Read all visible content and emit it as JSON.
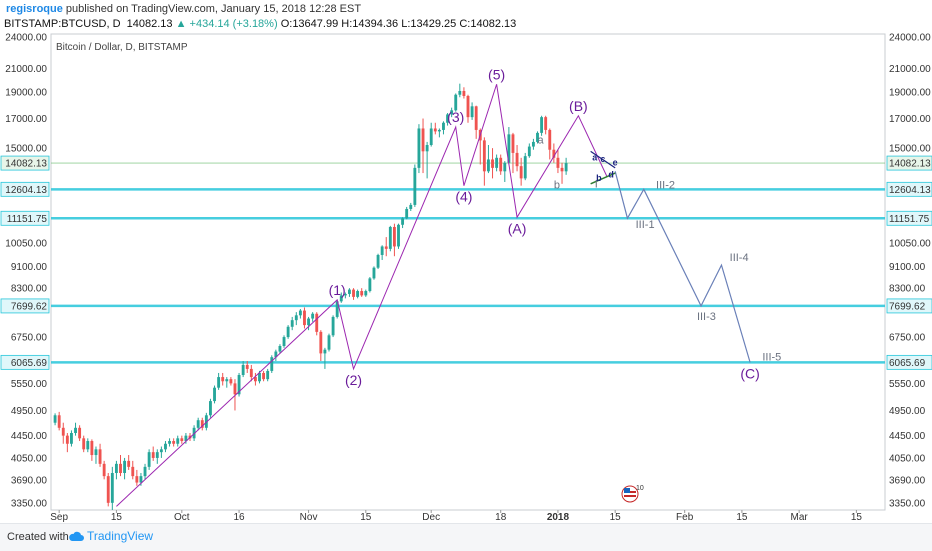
{
  "header": {
    "author": "regisroque",
    "published": "published on TradingView.com, January 15, 2018 12:28 EST",
    "symbol": "BITSTAMP:BTCUSD, D",
    "last": "14082.13",
    "change": "▲ +434.14 (+3.18%)",
    "o_label": "O:",
    "o": "13647.99",
    "h_label": "H:",
    "h": "14394.36",
    "l_label": "L:",
    "l": "13429.25",
    "c_label": "C:",
    "c": "14082.13"
  },
  "footer": {
    "created_with": "Created with",
    "brand": "TradingView"
  },
  "colors": {
    "up": "#26a69a",
    "down": "#ef5350",
    "wave": "#9c27b0",
    "projection": "#6a80b8",
    "hline": "#26c6da",
    "accent": "#1e88e5"
  },
  "chart_data": {
    "type": "candlestick",
    "title": "Bitcoin / Dollar, D, BITSTAMP",
    "ylim": [
      3250,
      24300
    ],
    "log_scale": true,
    "y_ticks": [
      3350,
      3690,
      4050,
      4450,
      4950,
      5550,
      6065.69,
      6750,
      7699.62,
      8300,
      9100,
      10050,
      11151.75,
      12604.13,
      14082.13,
      15000,
      17000,
      19000,
      21000,
      24000
    ],
    "y_tick_labels": [
      "3350.00",
      "3690.00",
      "4050.00",
      "4450.00",
      "4950.00",
      "5550.00",
      "6065.69",
      "6750.00",
      "7699.62",
      "8300.00",
      "9100.00",
      "10050.00",
      "11151.75",
      "12604.13",
      "14082.13",
      "15000.00",
      "17000.00",
      "19000.00",
      "21000.00",
      "24000.00"
    ],
    "x_range": [
      "2017-08-30",
      "2018-03-22"
    ],
    "x_ticks": [
      {
        "date": "2017-09-01",
        "label": "Sep"
      },
      {
        "date": "2017-09-15",
        "label": "15"
      },
      {
        "date": "2017-10-01",
        "label": "Oct"
      },
      {
        "date": "2017-10-15",
        "label": "16"
      },
      {
        "date": "2017-11-01",
        "label": "Nov"
      },
      {
        "date": "2017-11-15",
        "label": "15"
      },
      {
        "date": "2017-12-01",
        "label": "Dec"
      },
      {
        "date": "2017-12-18",
        "label": "18"
      },
      {
        "date": "2018-01-01",
        "label": "2018"
      },
      {
        "date": "2018-01-15",
        "label": "15"
      },
      {
        "date": "2018-02-01",
        "label": "Feb"
      },
      {
        "date": "2018-02-15",
        "label": "15"
      },
      {
        "date": "2018-03-01",
        "label": "Mar"
      },
      {
        "date": "2018-03-15",
        "label": "15"
      }
    ],
    "horizontal_lines": [
      6065.69,
      7699.62,
      11151.75,
      12604.13
    ],
    "current_price": 14082.13,
    "candles": {
      "start_date": "2017-08-31",
      "ohlc": [
        [
          4700,
          4890,
          4650,
          4850
        ],
        [
          4850,
          4920,
          4550,
          4600
        ],
        [
          4600,
          4700,
          4300,
          4450
        ],
        [
          4450,
          4500,
          4150,
          4300
        ],
        [
          4300,
          4550,
          4250,
          4500
        ],
        [
          4500,
          4700,
          4450,
          4600
        ],
        [
          4600,
          4650,
          4350,
          4400
        ],
        [
          4400,
          4450,
          4150,
          4200
        ],
        [
          4200,
          4400,
          4150,
          4350
        ],
        [
          4350,
          4380,
          4000,
          4100
        ],
        [
          4100,
          4250,
          3950,
          4200
        ],
        [
          4200,
          4300,
          3900,
          3950
        ],
        [
          3950,
          4000,
          3700,
          3750
        ],
        [
          3750,
          3800,
          3300,
          3350
        ],
        [
          3350,
          3900,
          3250,
          3800
        ],
        [
          3800,
          4000,
          3700,
          3950
        ],
        [
          3950,
          4100,
          3750,
          3800
        ],
        [
          3800,
          4050,
          3700,
          4000
        ],
        [
          4000,
          4100,
          3850,
          3900
        ],
        [
          3900,
          4000,
          3700,
          3750
        ],
        [
          3750,
          3850,
          3600,
          3650
        ],
        [
          3650,
          3800,
          3600,
          3750
        ],
        [
          3750,
          3950,
          3700,
          3900
        ],
        [
          3900,
          4200,
          3850,
          4150
        ],
        [
          4150,
          4250,
          4000,
          4050
        ],
        [
          4050,
          4200,
          3950,
          4150
        ],
        [
          4150,
          4250,
          4050,
          4200
        ],
        [
          4200,
          4350,
          4150,
          4300
        ],
        [
          4300,
          4400,
          4250,
          4350
        ],
        [
          4350,
          4400,
          4250,
          4300
        ],
        [
          4300,
          4450,
          4250,
          4400
        ],
        [
          4400,
          4450,
          4300,
          4350
        ],
        [
          4350,
          4500,
          4300,
          4450
        ],
        [
          4450,
          4500,
          4350,
          4400
        ],
        [
          4400,
          4650,
          4350,
          4600
        ],
        [
          4600,
          4800,
          4550,
          4750
        ],
        [
          4750,
          4800,
          4550,
          4600
        ],
        [
          4600,
          4900,
          4550,
          4850
        ],
        [
          4850,
          5200,
          4800,
          5150
        ],
        [
          5150,
          5500,
          5100,
          5450
        ],
        [
          5450,
          5800,
          5400,
          5700
        ],
        [
          5700,
          5800,
          5500,
          5600
        ],
        [
          5600,
          5700,
          5450,
          5650
        ],
        [
          5650,
          5700,
          5500,
          5550
        ],
        [
          5550,
          5650,
          4950,
          5300
        ],
        [
          5300,
          5800,
          5250,
          5750
        ],
        [
          5750,
          6100,
          5700,
          6000
        ],
        [
          6000,
          6100,
          5800,
          5900
        ],
        [
          5900,
          6000,
          5600,
          5700
        ],
        [
          5700,
          5800,
          5500,
          5600
        ],
        [
          5600,
          5850,
          5550,
          5800
        ],
        [
          5800,
          5850,
          5600,
          5650
        ],
        [
          5650,
          5900,
          5600,
          5850
        ],
        [
          5850,
          6250,
          5800,
          6200
        ],
        [
          6200,
          6400,
          6100,
          6350
        ],
        [
          6350,
          6550,
          6300,
          6500
        ],
        [
          6500,
          6800,
          6450,
          6750
        ],
        [
          6750,
          7100,
          6700,
          7050
        ],
        [
          7050,
          7350,
          6950,
          7250
        ],
        [
          7250,
          7500,
          7100,
          7400
        ],
        [
          7400,
          7600,
          7300,
          7550
        ],
        [
          7550,
          7650,
          7000,
          7100
        ],
        [
          7100,
          7350,
          6950,
          7300
        ],
        [
          7300,
          7500,
          7200,
          7450
        ],
        [
          7450,
          7500,
          6800,
          6900
        ],
        [
          6900,
          6950,
          6100,
          6300
        ],
        [
          6300,
          6450,
          5900,
          6400
        ],
        [
          6400,
          6850,
          6350,
          6800
        ],
        [
          6800,
          7400,
          6750,
          7350
        ],
        [
          7350,
          7900,
          7300,
          7850
        ],
        [
          7850,
          8150,
          7800,
          8050
        ],
        [
          8050,
          8150,
          7950,
          8100
        ],
        [
          8100,
          8300,
          8000,
          8250
        ],
        [
          8250,
          8300,
          7900,
          8000
        ],
        [
          8000,
          8250,
          7950,
          8200
        ],
        [
          8200,
          8300,
          8000,
          8050
        ],
        [
          8050,
          8250,
          8000,
          8200
        ],
        [
          8200,
          8700,
          8150,
          8650
        ],
        [
          8650,
          9100,
          8600,
          9050
        ],
        [
          9050,
          9600,
          9000,
          9550
        ],
        [
          9550,
          9950,
          9350,
          9900
        ],
        [
          9900,
          10300,
          9500,
          9800
        ],
        [
          9800,
          10800,
          9700,
          10750
        ],
        [
          10750,
          10900,
          9500,
          9900
        ],
        [
          9900,
          10900,
          9800,
          10850
        ],
        [
          10850,
          11200,
          10700,
          11150
        ],
        [
          11150,
          11700,
          11100,
          11600
        ],
        [
          11600,
          11900,
          11500,
          11800
        ],
        [
          11800,
          14000,
          11700,
          13800
        ],
        [
          13800,
          16600,
          13500,
          16300
        ],
        [
          16300,
          17000,
          13500,
          14800
        ],
        [
          14800,
          15400,
          13200,
          15200
        ],
        [
          15200,
          16700,
          15100,
          16300
        ],
        [
          16300,
          16700,
          15900,
          16100
        ],
        [
          16100,
          16300,
          15700,
          16200
        ],
        [
          16200,
          16800,
          15900,
          16700
        ],
        [
          16700,
          17400,
          16500,
          17300
        ],
        [
          17300,
          17800,
          17100,
          17600
        ],
        [
          17600,
          18900,
          17500,
          18800
        ],
        [
          18800,
          19700,
          18600,
          19100
        ],
        [
          19100,
          19400,
          18500,
          18700
        ],
        [
          18700,
          18800,
          16700,
          17100
        ],
        [
          17100,
          18200,
          16900,
          17900
        ],
        [
          17900,
          17950,
          15600,
          16200
        ],
        [
          16200,
          16300,
          14000,
          15500
        ],
        [
          15500,
          15700,
          12800,
          13600
        ],
        [
          13600,
          15200,
          13500,
          14300
        ],
        [
          14300,
          15000,
          13200,
          13800
        ],
        [
          13800,
          14600,
          13600,
          14400
        ],
        [
          14400,
          14600,
          13400,
          13600
        ],
        [
          13600,
          14200,
          13000,
          14100
        ],
        [
          14100,
          16400,
          14000,
          15900
        ],
        [
          15900,
          16000,
          13500,
          14700
        ],
        [
          14700,
          15200,
          13600,
          13900
        ],
        [
          13900,
          14400,
          12800,
          13200
        ],
        [
          13200,
          14700,
          13100,
          14500
        ],
        [
          14500,
          15300,
          14400,
          15100
        ],
        [
          15100,
          15600,
          14900,
          15400
        ],
        [
          15400,
          16100,
          15300,
          16000
        ],
        [
          16000,
          17200,
          15800,
          17100
        ],
        [
          17100,
          17200,
          15900,
          16200
        ],
        [
          16200,
          16300,
          14300,
          14900
        ],
        [
          14900,
          15300,
          14100,
          14400
        ],
        [
          14400,
          14900,
          13500,
          13800
        ],
        [
          13800,
          14100,
          12900,
          13600
        ],
        [
          13600,
          14400,
          13400,
          14082.13
        ]
      ]
    },
    "elliott_waves": [
      {
        "label": "(1)",
        "date": "2017-11-08",
        "price": 7900
      },
      {
        "label": "(2)",
        "date": "2017-11-12",
        "price": 5900
      },
      {
        "label": "(3)",
        "date": "2017-12-07",
        "price": 16400
      },
      {
        "label": "(4)",
        "date": "2017-12-09",
        "price": 12800
      },
      {
        "label": "(5)",
        "date": "2017-12-17",
        "price": 19650
      },
      {
        "label": "(A)",
        "date": "2017-12-22",
        "price": 11200
      },
      {
        "label": "(B)",
        "date": "2018-01-06",
        "price": 17200
      },
      {
        "label": "(C)",
        "date": "2018-02-17",
        "price": 6065.69
      }
    ],
    "wave_path": [
      [
        "2017-09-15",
        3300
      ],
      [
        "2017-11-08",
        7900
      ],
      [
        "2017-11-12",
        5900
      ],
      [
        "2017-12-07",
        16400
      ],
      [
        "2017-12-09",
        12800
      ],
      [
        "2017-12-17",
        19650
      ],
      [
        "2017-12-22",
        11200
      ],
      [
        "2018-01-06",
        17200
      ],
      [
        "2018-01-13",
        13300
      ]
    ],
    "projection_path": [
      [
        "2018-01-15",
        13600
      ],
      [
        "2018-01-18",
        11150
      ],
      [
        "2018-01-22",
        12604
      ],
      [
        "2018-02-05",
        7700
      ],
      [
        "2018-02-10",
        9150
      ],
      [
        "2018-02-17",
        6065.69
      ]
    ],
    "small_labels": [
      {
        "text": "a",
        "date": "2017-12-27",
        "price": 15300
      },
      {
        "text": "b",
        "date": "2017-12-31",
        "price": 12650
      },
      {
        "text": "I",
        "date": "2018-01-10",
        "price": 12700
      },
      {
        "text": "III-2",
        "date": "2018-01-25",
        "price": 12650
      },
      {
        "text": "III-1",
        "date": "2018-01-20",
        "price": 10700
      },
      {
        "text": "III-4",
        "date": "2018-02-12",
        "price": 9300
      },
      {
        "text": "III-3",
        "date": "2018-02-04",
        "price": 7250
      },
      {
        "text": "III-5",
        "date": "2018-02-20",
        "price": 6120
      }
    ],
    "triangle_labels": [
      {
        "text": "a",
        "date": "2018-01-10",
        "price": 14250
      },
      {
        "text": "c",
        "date": "2018-01-12",
        "price": 14150
      },
      {
        "text": "e",
        "date": "2018-01-15",
        "price": 13950
      },
      {
        "text": "b",
        "date": "2018-01-11",
        "price": 13050
      },
      {
        "text": "d",
        "date": "2018-01-14",
        "price": 13250
      }
    ]
  }
}
